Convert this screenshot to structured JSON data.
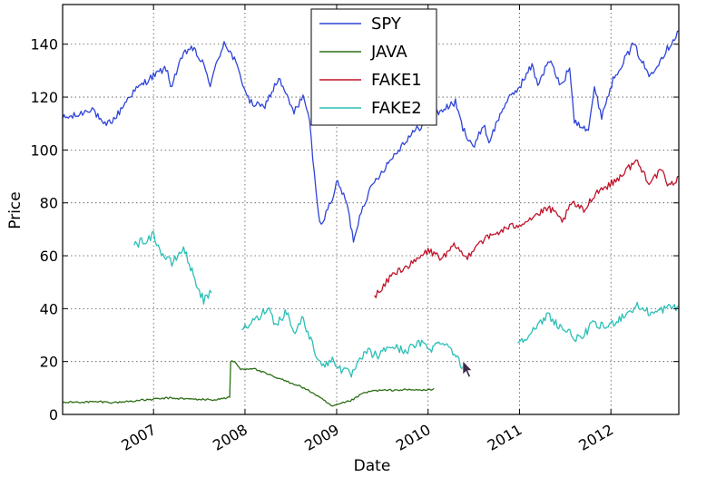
{
  "chart_data": {
    "type": "line",
    "title": "",
    "xlabel": "Date",
    "ylabel": "Price",
    "x_range": [
      "2006-01-03",
      "2012-09-28"
    ],
    "ylim": [
      0,
      155
    ],
    "yticks": [
      0,
      20,
      40,
      60,
      80,
      100,
      120,
      140
    ],
    "xticks": [
      "2007",
      "2008",
      "2009",
      "2010",
      "2011",
      "2012"
    ],
    "grid": true,
    "legend_position": "top-center",
    "series": [
      {
        "name": "SPY",
        "color": "#2f44d8",
        "points": [
          [
            "2006-01-03",
            112
          ],
          [
            "2006-03-01",
            113
          ],
          [
            "2006-05-01",
            116
          ],
          [
            "2006-06-15",
            109
          ],
          [
            "2006-08-01",
            112
          ],
          [
            "2006-10-01",
            121
          ],
          [
            "2006-12-15",
            127
          ],
          [
            "2007-02-20",
            131
          ],
          [
            "2007-03-10",
            124
          ],
          [
            "2007-05-01",
            136
          ],
          [
            "2007-06-01",
            139
          ],
          [
            "2007-07-15",
            133
          ],
          [
            "2007-08-15",
            125
          ],
          [
            "2007-10-10",
            141
          ],
          [
            "2007-11-20",
            134
          ],
          [
            "2008-01-20",
            118
          ],
          [
            "2008-03-15",
            116
          ],
          [
            "2008-05-15",
            127
          ],
          [
            "2008-07-15",
            114
          ],
          [
            "2008-08-20",
            121
          ],
          [
            "2008-09-15",
            110
          ],
          [
            "2008-10-10",
            85
          ],
          [
            "2008-10-25",
            72
          ],
          [
            "2008-11-20",
            76
          ],
          [
            "2008-12-15",
            82
          ],
          [
            "2009-01-05",
            88
          ],
          [
            "2009-02-10",
            80
          ],
          [
            "2009-03-09",
            66
          ],
          [
            "2009-04-15",
            79
          ],
          [
            "2009-06-01",
            88
          ],
          [
            "2009-08-01",
            96
          ],
          [
            "2009-10-15",
            105
          ],
          [
            "2009-12-15",
            110
          ],
          [
            "2010-01-20",
            113
          ],
          [
            "2010-04-20",
            118
          ],
          [
            "2010-05-20",
            108
          ],
          [
            "2010-07-05",
            101
          ],
          [
            "2010-08-10",
            110
          ],
          [
            "2010-09-01",
            103
          ],
          [
            "2010-11-01",
            117
          ],
          [
            "2011-01-01",
            124
          ],
          [
            "2011-02-20",
            132
          ],
          [
            "2011-03-15",
            125
          ],
          [
            "2011-05-01",
            134
          ],
          [
            "2011-06-15",
            124
          ],
          [
            "2011-07-20",
            131
          ],
          [
            "2011-08-08",
            111
          ],
          [
            "2011-10-03",
            108
          ],
          [
            "2011-10-27",
            123
          ],
          [
            "2011-11-25",
            113
          ],
          [
            "2012-01-15",
            128
          ],
          [
            "2012-04-01",
            140
          ],
          [
            "2012-06-01",
            128
          ],
          [
            "2012-07-15",
            134
          ],
          [
            "2012-09-28",
            145
          ]
        ]
      },
      {
        "name": "JAVA",
        "color": "#2e6f17",
        "points": [
          [
            "2006-01-03",
            4.5
          ],
          [
            "2006-06-01",
            4.8
          ],
          [
            "2006-08-01",
            4.5
          ],
          [
            "2006-12-01",
            5.5
          ],
          [
            "2007-03-01",
            6.2
          ],
          [
            "2007-06-01",
            5.8
          ],
          [
            "2007-09-01",
            5.5
          ],
          [
            "2007-11-01",
            6.5
          ],
          [
            "2007-11-05",
            20
          ],
          [
            "2007-11-20",
            20
          ],
          [
            "2007-12-15",
            17
          ],
          [
            "2008-02-01",
            17.5
          ],
          [
            "2008-05-01",
            14
          ],
          [
            "2008-08-01",
            11
          ],
          [
            "2008-10-01",
            8
          ],
          [
            "2008-11-15",
            5
          ],
          [
            "2008-12-15",
            3
          ],
          [
            "2009-01-15",
            4
          ],
          [
            "2009-02-20",
            5
          ],
          [
            "2009-03-15",
            6
          ],
          [
            "2009-04-15",
            8
          ],
          [
            "2009-06-01",
            9
          ],
          [
            "2009-10-01",
            9.3
          ],
          [
            "2010-01-01",
            9.2
          ],
          [
            "2010-01-25",
            9.8
          ]
        ]
      },
      {
        "name": "FAKE1",
        "color": "#c0132a",
        "points": [
          [
            "2009-06-01",
            45
          ],
          [
            "2009-07-01",
            47
          ],
          [
            "2009-08-01",
            52
          ],
          [
            "2009-09-15",
            55
          ],
          [
            "2009-11-01",
            57
          ],
          [
            "2010-01-01",
            62
          ],
          [
            "2010-03-01",
            59
          ],
          [
            "2010-04-20",
            64
          ],
          [
            "2010-06-01",
            59
          ],
          [
            "2010-07-20",
            65
          ],
          [
            "2010-09-01",
            67
          ],
          [
            "2010-11-01",
            70
          ],
          [
            "2011-01-01",
            72
          ],
          [
            "2011-03-01",
            75
          ],
          [
            "2011-05-01",
            78
          ],
          [
            "2011-06-20",
            73
          ],
          [
            "2011-08-01",
            80
          ],
          [
            "2011-09-15",
            77
          ],
          [
            "2011-11-01",
            84
          ],
          [
            "2012-01-15",
            88
          ],
          [
            "2012-04-10",
            96
          ],
          [
            "2012-06-01",
            88
          ],
          [
            "2012-07-20",
            92
          ],
          [
            "2012-08-20",
            86
          ],
          [
            "2012-09-28",
            90
          ]
        ]
      },
      {
        "name": "FAKE2",
        "color": "#2bbfb6",
        "points": [
          [
            "2006-10-15",
            64
          ],
          [
            "2006-12-01",
            66
          ],
          [
            "2007-01-01",
            68
          ],
          [
            "2007-02-01",
            61
          ],
          [
            "2007-03-15",
            57
          ],
          [
            "2007-05-01",
            63
          ],
          [
            "2007-06-15",
            51
          ],
          [
            "2007-07-20",
            43
          ],
          [
            "2007-08-20",
            46
          ],
          null,
          [
            "2007-12-20",
            32
          ],
          [
            "2008-02-01",
            35
          ],
          [
            "2008-03-01",
            37
          ],
          [
            "2008-04-01",
            41
          ],
          [
            "2008-05-01",
            34
          ],
          [
            "2008-06-15",
            39
          ],
          [
            "2008-07-20",
            30
          ],
          [
            "2008-08-15",
            37
          ],
          [
            "2008-09-20",
            28
          ],
          [
            "2008-10-15",
            22
          ],
          [
            "2008-11-15",
            18
          ],
          [
            "2008-12-15",
            21
          ],
          [
            "2009-01-20",
            17
          ],
          [
            "2009-03-01",
            15
          ],
          [
            "2009-05-01",
            24
          ],
          [
            "2009-06-15",
            22
          ],
          [
            "2009-08-01",
            26
          ],
          [
            "2009-10-01",
            24
          ],
          [
            "2009-12-01",
            27
          ],
          [
            "2010-01-15",
            25
          ],
          [
            "2010-03-01",
            28
          ],
          [
            "2010-04-10",
            24
          ],
          [
            "2010-05-10",
            19
          ],
          [
            "2010-05-25",
            18
          ],
          null,
          [
            "2010-12-25",
            27
          ],
          [
            "2011-02-01",
            30
          ],
          [
            "2011-03-15",
            33
          ],
          [
            "2011-04-25",
            38
          ],
          [
            "2011-06-01",
            34
          ],
          [
            "2011-07-15",
            31
          ],
          [
            "2011-09-01",
            28
          ],
          [
            "2011-10-15",
            34
          ],
          [
            "2011-12-15",
            33
          ],
          [
            "2012-02-15",
            37
          ],
          [
            "2012-04-15",
            41
          ],
          [
            "2012-06-15",
            38
          ],
          [
            "2012-08-01",
            40
          ],
          [
            "2012-09-28",
            41
          ]
        ]
      }
    ]
  }
}
